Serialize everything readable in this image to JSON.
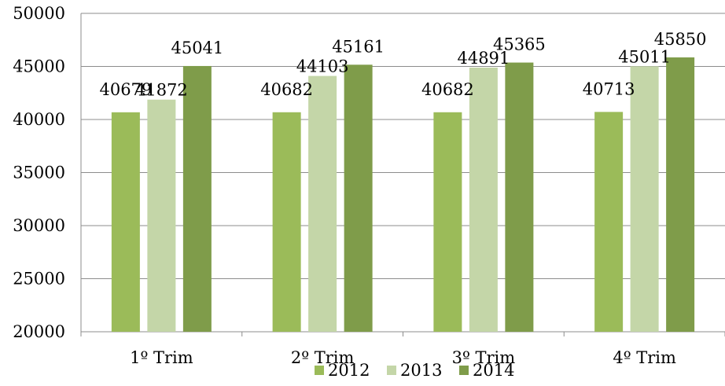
{
  "chart_data": {
    "type": "bar",
    "categories": [
      "1º Trim",
      "2º Trim",
      "3º Trim",
      "4º Trim"
    ],
    "series": [
      {
        "name": "2012",
        "values": [
          40679,
          40682,
          40682,
          40713
        ],
        "color": "#9bbb59"
      },
      {
        "name": "2013",
        "values": [
          41872,
          44103,
          44891,
          45011
        ],
        "color": "#c4d6a8"
      },
      {
        "name": "2014",
        "values": [
          45041,
          45161,
          45365,
          45850
        ],
        "color": "#7f9c4a"
      }
    ],
    "ylim": [
      20000,
      50000
    ],
    "yticks": [
      20000,
      25000,
      30000,
      35000,
      40000,
      45000,
      50000
    ],
    "grid": true,
    "legend": "bottom"
  }
}
